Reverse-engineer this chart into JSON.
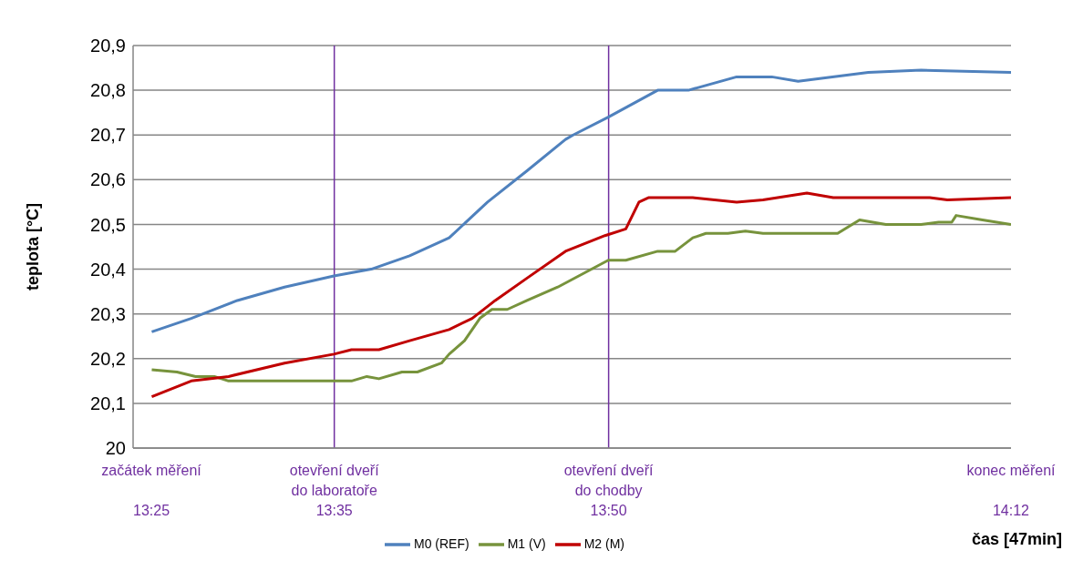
{
  "chart_data": {
    "type": "line",
    "xlabel": "čas [47min]",
    "ylabel": "teplota [°C]",
    "xlim": [
      13.4,
      14.2
    ],
    "ylim": [
      20,
      20.9
    ],
    "yticks": [
      20,
      {
        "value": 20.1,
        "label": "20,1"
      },
      {
        "value": 20.2,
        "label": "20,2"
      },
      {
        "value": 20.3,
        "label": "20,3"
      },
      {
        "value": 20.4,
        "label": "20,4"
      },
      {
        "value": 20.5,
        "label": "20,5"
      },
      {
        "value": 20.6,
        "label": "20,6"
      },
      {
        "value": 20.7,
        "label": "20,7"
      },
      {
        "value": 20.8,
        "label": "20,8"
      },
      {
        "value": 20.9,
        "label": "20,9"
      }
    ],
    "xticks": [
      {
        "value": 13.416667,
        "label": "13:25"
      },
      {
        "value": 13.583333,
        "label": "13:35"
      },
      {
        "value": 13.833333,
        "label": "13:50"
      },
      {
        "value": 14.2,
        "label": "14:12"
      }
    ],
    "annotations": [
      "začátek měření",
      "konec měření"
    ],
    "grid": "y",
    "legend": "bottom",
    "marker": "none",
    "line_style": "solid",
    "series": [
      {
        "name": "M0 (REF)",
        "color": "#4f81bd",
        "x": [
          13.417,
          13.453,
          13.495,
          13.538,
          13.583,
          13.617,
          13.652,
          13.688,
          13.723,
          13.759,
          13.794,
          13.801,
          13.833,
          13.878,
          13.906,
          13.95,
          13.982,
          14.006,
          14.07,
          14.118,
          14.2
        ],
        "values": [
          20.26,
          20.29,
          20.33,
          20.36,
          20.385,
          20.4,
          20.43,
          20.47,
          20.55,
          20.62,
          20.69,
          20.7,
          20.74,
          20.8,
          20.8,
          20.83,
          20.83,
          20.82,
          20.84,
          20.845,
          20.84
        ]
      },
      {
        "name": "M1 (V)",
        "color": "#77933c",
        "x": [
          13.417,
          13.44,
          13.457,
          13.474,
          13.487,
          13.583,
          13.599,
          13.613,
          13.624,
          13.645,
          13.659,
          13.681,
          13.688,
          13.702,
          13.716,
          13.727,
          13.741,
          13.759,
          13.787,
          13.833,
          13.849,
          13.878,
          13.894,
          13.91,
          13.922,
          13.942,
          13.958,
          13.974,
          14.042,
          14.062,
          14.086,
          14.118,
          14.134,
          14.146,
          14.15,
          14.174,
          14.2
        ],
        "values": [
          20.175,
          20.17,
          20.16,
          20.16,
          20.15,
          20.15,
          20.15,
          20.16,
          20.155,
          20.17,
          20.17,
          20.19,
          20.21,
          20.24,
          20.29,
          20.31,
          20.31,
          20.33,
          20.36,
          20.42,
          20.42,
          20.44,
          20.44,
          20.47,
          20.48,
          20.48,
          20.485,
          20.48,
          20.48,
          20.51,
          20.5,
          20.5,
          20.505,
          20.505,
          20.52,
          20.51,
          20.5
        ]
      },
      {
        "name": "M2 (M)",
        "color": "#c00000",
        "x": [
          13.417,
          13.453,
          13.487,
          13.538,
          13.583,
          13.599,
          13.624,
          13.652,
          13.688,
          13.709,
          13.73,
          13.759,
          13.794,
          13.83,
          13.849,
          13.861,
          13.87,
          13.91,
          13.95,
          13.974,
          14.014,
          14.038,
          14.126,
          14.142,
          14.2
        ],
        "values": [
          20.115,
          20.15,
          20.16,
          20.19,
          20.21,
          20.22,
          20.22,
          20.24,
          20.265,
          20.29,
          20.33,
          20.38,
          20.44,
          20.475,
          20.49,
          20.55,
          20.56,
          20.56,
          20.55,
          20.555,
          20.57,
          20.56,
          20.56,
          20.555,
          20.56
        ]
      }
    ],
    "ref_lines": [
      {
        "axis": "x",
        "value": 13.583333,
        "label": "otevření dveří\ndo laboratoře",
        "color": "#7030a0"
      },
      {
        "axis": "x",
        "value": 13.833333,
        "label": "otevření dveří\ndo chodby",
        "color": "#7030a0"
      }
    ]
  }
}
